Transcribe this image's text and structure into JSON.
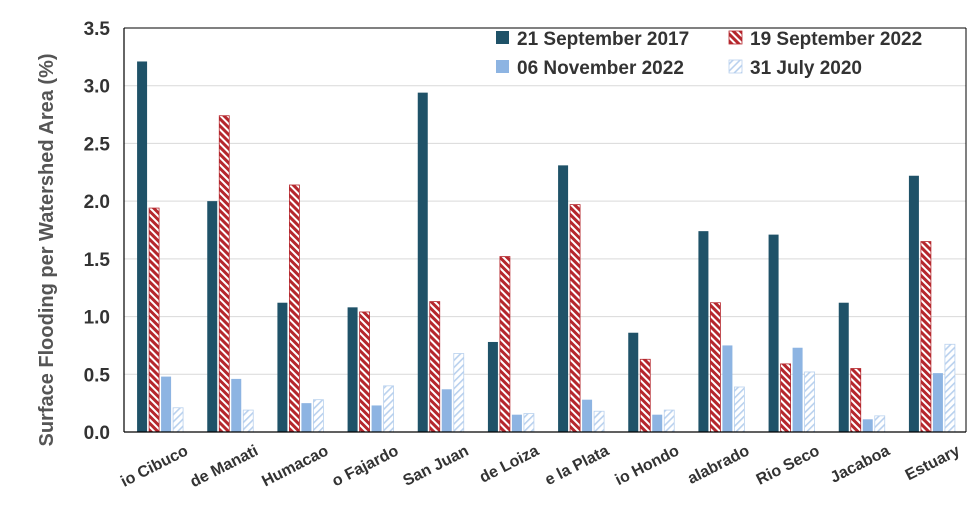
{
  "chart_data": {
    "type": "bar",
    "ylabel": "Surface Flooding per Watershed Area (%)",
    "ylim": [
      0,
      3.5
    ],
    "yticks": [
      "0.0",
      "0.5",
      "1.0",
      "1.5",
      "2.0",
      "2.5",
      "3.0",
      "3.5"
    ],
    "grid": true,
    "legend_position": "top-right",
    "categories": [
      "Rio Cibuco",
      "Rio Grande de Manati",
      "Rio Humacao",
      "Rio Fajardo",
      "San Juan",
      "Rio Grande de Loiza",
      "Rio de la Plata",
      "Rio Hondo",
      "Rio Culebrinas y Calabrado",
      "Rio Seco",
      "Jacaboa",
      "San Juan Bay Estuary"
    ],
    "visible_category_labels": [
      "io Cibuco",
      "de Manati",
      "Humacao",
      "o Fajardo",
      "San Juan",
      "de Loiza",
      "e la Plata",
      "io Hondo",
      "alabrado",
      "Rio Seco",
      "Jacaboa",
      "Estuary"
    ],
    "series": [
      {
        "name": "21 September 2017",
        "color": "#1f5268",
        "pattern": "solid",
        "values": [
          3.21,
          2.0,
          1.12,
          1.08,
          2.94,
          0.78,
          2.31,
          0.86,
          1.74,
          1.71,
          1.12,
          2.22
        ]
      },
      {
        "name": "19 September 2022",
        "color": "#b5272d",
        "pattern": "hatch",
        "values": [
          1.94,
          2.74,
          2.14,
          1.04,
          1.13,
          1.52,
          1.97,
          0.63,
          1.12,
          0.59,
          0.55,
          1.65
        ]
      },
      {
        "name": "06 November 2022",
        "color": "#8db4e2",
        "pattern": "solid",
        "values": [
          0.48,
          0.46,
          0.25,
          0.23,
          0.37,
          0.15,
          0.28,
          0.15,
          0.75,
          0.73,
          0.11,
          0.51
        ]
      },
      {
        "name": "31 July 2020",
        "color": "#c5d9f1",
        "pattern": "hatch-light",
        "values": [
          0.21,
          0.19,
          0.28,
          0.4,
          0.68,
          0.16,
          0.18,
          0.19,
          0.39,
          0.52,
          0.14,
          0.76
        ]
      }
    ]
  }
}
